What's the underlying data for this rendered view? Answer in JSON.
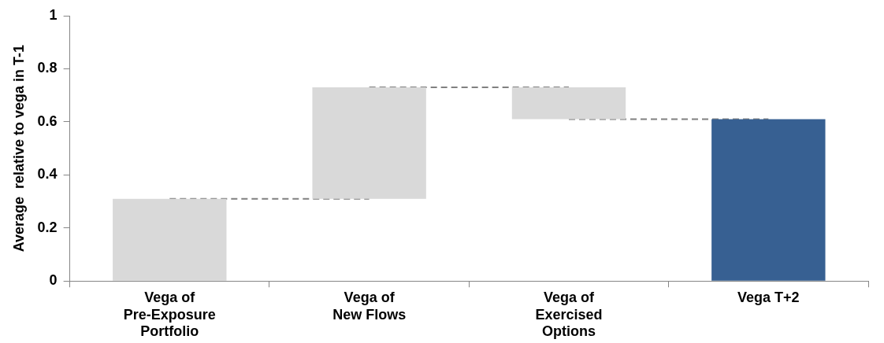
{
  "chart_data": {
    "type": "bar",
    "ylabel": "Average  relative to vega in T-1",
    "categories": [
      "Vega of Pre-Exposure Portfolio",
      "Vega of New Flows",
      "Vega of Exercised Options",
      "Vega T+2"
    ],
    "series": [
      {
        "colors": [
          "#d9d9d9",
          "#d9d9d9",
          "#d9d9d9",
          "#376092"
        ],
        "values": [
          0.31,
          0.42,
          0.12,
          0.61
        ],
        "base": [
          0,
          0.31,
          0.61,
          0
        ]
      },
      {
        "type": "line",
        "color": "#808080",
        "line_style": "dashed",
        "marker": "none",
        "values": [
          0.31,
          0.31,
          null,
          null
        ]
      },
      {
        "type": "line",
        "color": "#808080",
        "line_style": "dashed",
        "marker": "none",
        "values": [
          null,
          0.73,
          0.73,
          null
        ]
      },
      {
        "type": "line",
        "color": "#808080",
        "line_style": "dashed",
        "marker": "none",
        "values": [
          null,
          null,
          0.61,
          0.61
        ]
      }
    ],
    "ylim": [
      0,
      1
    ],
    "yticks": [
      0,
      0.2,
      0.4,
      0.6,
      0.8,
      1
    ],
    "grid": false,
    "legend": false
  }
}
